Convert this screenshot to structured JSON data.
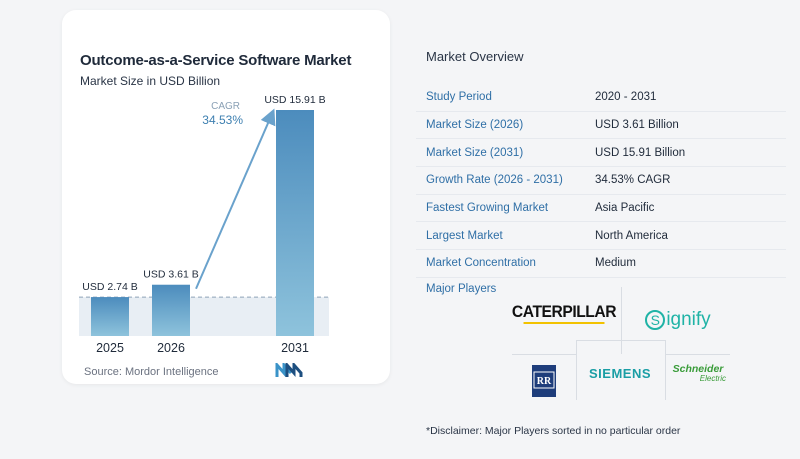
{
  "chart_data": {
    "type": "bar",
    "title": "Outcome-as-a-Service Software Market",
    "subtitle": "Market Size in USD Billion",
    "categories": [
      "2025",
      "2026",
      "2031"
    ],
    "values": [
      2.74,
      3.61,
      15.91
    ],
    "value_labels": [
      "USD 2.74 B",
      "USD 3.61 B",
      "USD 15.91 B"
    ],
    "ylim": [
      0,
      17
    ],
    "cagr_label": "CAGR",
    "cagr_value": "34.53%",
    "grid": false,
    "colors": {
      "bar_light": "#5f9fc9",
      "bar_dark": "#3d7fb0",
      "arrow": "#6aa2cc",
      "dash": "#8fa3b8"
    }
  },
  "source": "Source:  Mordor Intelligence",
  "overview": {
    "title": "Market Overview",
    "rows": [
      {
        "label": "Study Period",
        "value": "2020 - 2031"
      },
      {
        "label": "Market Size (2026)",
        "value": "USD 3.61 Billion"
      },
      {
        "label": "Market Size (2031)",
        "value": "USD 15.91 Billion"
      },
      {
        "label": "Growth Rate (2026 - 2031)",
        "value": "34.53% CAGR"
      },
      {
        "label": "Fastest Growing Market",
        "value": "Asia Pacific"
      },
      {
        "label": "Largest Market",
        "value": "North America"
      },
      {
        "label": "Market Concentration",
        "value": "Medium"
      }
    ]
  },
  "players": {
    "title": "Major Players",
    "logos": {
      "caterpillar": "CATERPILLAR",
      "signify": "ignify",
      "signify_s": "S",
      "siemens": "SIEMENS",
      "schneider_a": "Schneider",
      "schneider_b": "Electric"
    }
  },
  "disclaimer": "*Disclaimer: Major Players sorted in no particular order"
}
